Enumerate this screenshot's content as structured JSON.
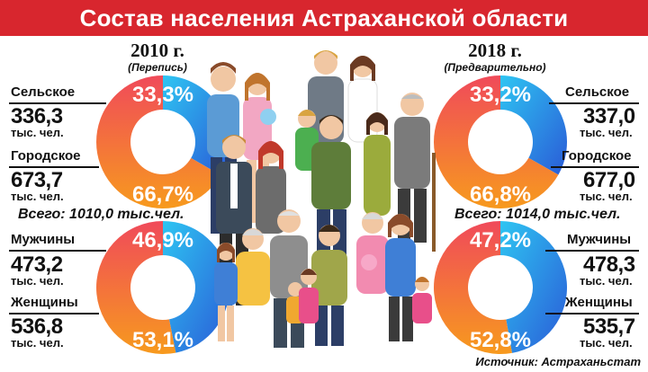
{
  "title": "Состав населения Астраханской области",
  "source": "Источник: Астраханьстат",
  "colors": {
    "title_bg": "#d8262e",
    "blue_light": "#2ec5f2",
    "blue_dark": "#2a5bd7",
    "red_light": "#f04a5a",
    "orange": "#f79a1e"
  },
  "left": {
    "year": "2010 г.",
    "note": "(Перепись)",
    "total": "Всего: 1010,0 тыс.чел.",
    "rural": {
      "label": "Сельское",
      "value": "336,3",
      "unit": "тыс. чел."
    },
    "urban": {
      "label": "Городское",
      "value": "673,7",
      "unit": "тыс. чел."
    },
    "men": {
      "label": "Мужчины",
      "value": "473,2",
      "unit": "тыс. чел."
    },
    "women": {
      "label": "Женщины",
      "value": "536,8",
      "unit": "тыс. чел."
    }
  },
  "right": {
    "year": "2018 г.",
    "note": "(Предварительно)",
    "total": "Всего: 1014,0 тыс.чел.",
    "rural": {
      "label": "Сельское",
      "value": "337,0",
      "unit": "тыс. чел."
    },
    "urban": {
      "label": "Городское",
      "value": "677,0",
      "unit": "тыс. чел."
    },
    "men": {
      "label": "Мужчины",
      "value": "478,3",
      "unit": "тыс. чел."
    },
    "women": {
      "label": "Женщины",
      "value": "535,7",
      "unit": "тыс. чел."
    }
  },
  "chart_data": [
    {
      "type": "pie",
      "title": "",
      "categories": [
        "Сельское",
        "Городское"
      ],
      "values": [
        33.3,
        66.7
      ],
      "labels": [
        "33,3%",
        "66,7%"
      ]
    },
    {
      "type": "pie",
      "title": "",
      "categories": [
        "Мужчины",
        "Женщины"
      ],
      "values": [
        46.9,
        53.1
      ],
      "labels": [
        "46,9%",
        "53,1%"
      ]
    },
    {
      "type": "pie",
      "title": "",
      "categories": [
        "Сельское",
        "Городское"
      ],
      "values": [
        33.2,
        66.8
      ],
      "labels": [
        "33,2%",
        "66,8%"
      ]
    },
    {
      "type": "pie",
      "title": "",
      "categories": [
        "Мужчины",
        "Женщины"
      ],
      "values": [
        47.2,
        52.8
      ],
      "labels": [
        "47,2%",
        "52,8%"
      ]
    }
  ]
}
